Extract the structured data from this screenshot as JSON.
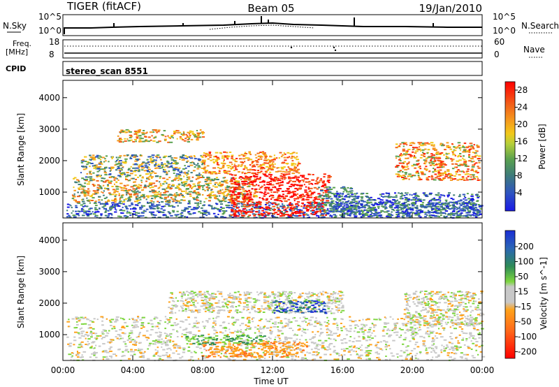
{
  "header": {
    "radar": "TIGER (fitACF)",
    "beam": "Beam 05",
    "date": "19/Jan/2010"
  },
  "strips": {
    "nsky": {
      "label": "N.Sky",
      "ticks": [
        "10^5",
        "10^0"
      ],
      "right_label": "N.Search",
      "right_ticks": [
        "10^5",
        "10^0"
      ]
    },
    "freq": {
      "label_line1": "Freq.",
      "label_line2": "[MHz]",
      "ticks": [
        "18",
        "8"
      ],
      "right_label": "Nave",
      "right_ticks": [
        "60",
        "0"
      ]
    },
    "cpid": {
      "label": "CPID",
      "program": "stereo_scan 8551"
    }
  },
  "chart_data": [
    {
      "type": "heatmap",
      "title": "",
      "xlabel": "Time UT",
      "ylabel": "Slant Range [km]",
      "xlim": [
        "00:00",
        "24:00"
      ],
      "ylim": [
        180,
        4550
      ],
      "x_ticks": [
        "00:00",
        "04:00",
        "08:00",
        "12:00",
        "16:00",
        "20:00",
        "00:00"
      ],
      "y_ticks": [
        1000,
        2000,
        3000,
        4000
      ],
      "colorbar": {
        "label": "Power [dB]",
        "ticks": [
          "4",
          "8",
          "12",
          "16",
          "20",
          "24",
          "28"
        ],
        "colors": [
          "#1f1fe0",
          "#3a5fb0",
          "#4f8f5a",
          "#73b347",
          "#f0c21a",
          "#f59a1e",
          "#f06a1a",
          "#ff2a0a",
          "#ff0000"
        ]
      },
      "regions": [
        {
          "t0": 0.2,
          "t1": 24,
          "r0": 200,
          "r1": 700,
          "value": "4-12"
        },
        {
          "t0": 0.5,
          "t1": 11,
          "r0": 700,
          "r1": 1500,
          "value": "12-24"
        },
        {
          "t0": 1,
          "t1": 8,
          "r0": 1500,
          "r1": 2200,
          "value": "8-20"
        },
        {
          "t0": 3,
          "t1": 8,
          "r0": 2600,
          "r1": 3000,
          "value": "16-24"
        },
        {
          "t0": 8,
          "t1": 13.5,
          "r0": 1600,
          "r1": 2300,
          "value": "20-28"
        },
        {
          "t0": 9.5,
          "t1": 15.2,
          "r0": 250,
          "r1": 1600,
          "value": "24-32"
        },
        {
          "t0": 14.5,
          "t1": 16.5,
          "r0": 400,
          "r1": 1200,
          "value": "8-16"
        },
        {
          "t0": 19,
          "t1": 23.8,
          "r0": 1400,
          "r1": 2600,
          "value": "16-28"
        },
        {
          "t0": 15.5,
          "t1": 23.8,
          "r0": 250,
          "r1": 1000,
          "value": "4-16"
        }
      ]
    },
    {
      "type": "heatmap",
      "title": "",
      "xlabel": "Time UT",
      "ylabel": "Slant Range [km]",
      "xlim": [
        "00:00",
        "24:00"
      ],
      "ylim": [
        180,
        4550
      ],
      "x_ticks": [
        "00:00",
        "04:00",
        "08:00",
        "12:00",
        "16:00",
        "20:00",
        "00:00"
      ],
      "y_ticks": [
        1000,
        2000,
        3000,
        4000
      ],
      "colorbar": {
        "label": "Velocity [m s^-1]",
        "ticks": [
          "200",
          "100",
          "50",
          "15",
          "-15",
          "-50",
          "-100",
          "-200"
        ],
        "colors": [
          "#1a2ed6",
          "#2b66b5",
          "#2e8b57",
          "#7dd63f",
          "#c8c8c8",
          "#c8c8c8",
          "#ff9a1a",
          "#ff6a1a",
          "#ff3a0a",
          "#ff0000"
        ]
      },
      "regions": [
        {
          "t0": 0.2,
          "t1": 24,
          "r0": 200,
          "r1": 1600,
          "value": "-15 to 15"
        },
        {
          "t0": 6,
          "t1": 16,
          "r0": 1700,
          "r1": 2400,
          "value": "-15 to 15"
        },
        {
          "t0": 12,
          "t1": 15,
          "r0": 1700,
          "r1": 2100,
          "value": "100 to 200"
        },
        {
          "t0": 8,
          "t1": 14,
          "r0": 300,
          "r1": 800,
          "value": "-15 to -100"
        },
        {
          "t0": 7,
          "t1": 11.5,
          "r0": 700,
          "r1": 1000,
          "value": "15 to 50"
        },
        {
          "t0": 19.5,
          "t1": 24,
          "r0": 1300,
          "r1": 2400,
          "value": "-15 to 15"
        }
      ]
    }
  ]
}
